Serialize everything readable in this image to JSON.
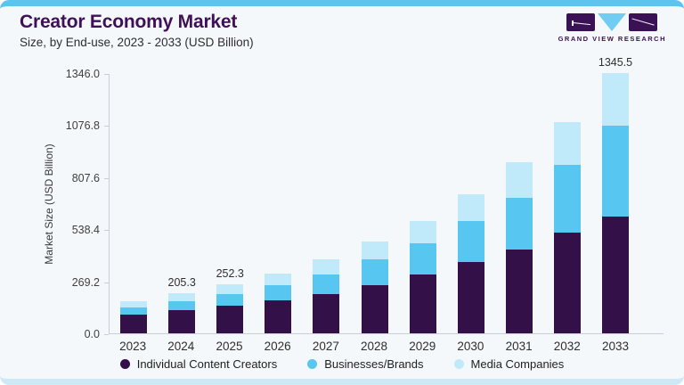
{
  "header": {
    "title": "Creator Economy Market",
    "subtitle": "Size, by End-use, 2023 - 2033 (USD Billion)"
  },
  "logo": {
    "text": "GRAND VIEW RESEARCH",
    "mark_colors": {
      "rect": "#3b1156",
      "triangle": "#70ccf2"
    }
  },
  "colors": {
    "card_background": "#f5f8fb",
    "top_strip": "#5ac6f0",
    "bottom_strip": "#cde9f6",
    "title_text": "#3e1057",
    "axis_line": "#c9cfd7"
  },
  "chart_data": {
    "type": "bar",
    "stacked": true,
    "title": "Creator Economy Market",
    "subtitle": "Size, by End-use, 2023 - 2033 (USD Billion)",
    "xlabel": "",
    "ylabel": "Market Size (USD Billion)",
    "ylim": [
      0,
      1346
    ],
    "yticks": [
      "0.0",
      "269.2",
      "538.4",
      "807.6",
      "1076.8",
      "1346.0"
    ],
    "grid": false,
    "legend_position": "bottom",
    "categories": [
      "2023",
      "2024",
      "2025",
      "2026",
      "2027",
      "2028",
      "2029",
      "2030",
      "2031",
      "2032",
      "2033"
    ],
    "series": [
      {
        "name": "Individual Content Creators",
        "color": "#341049",
        "values": [
          98.2,
          118.1,
          141.3,
          171.1,
          203.3,
          250.7,
          303.3,
          366.7,
          434.4,
          519.3,
          605.5
        ]
      },
      {
        "name": "Businesses/Brands",
        "color": "#57c7f1",
        "values": [
          35.0,
          46.2,
          60.5,
          77.8,
          99.7,
          130.1,
          163.3,
          215.7,
          266.0,
          349.8,
          470.9
        ]
      },
      {
        "name": "Media Companies",
        "color": "#c0e9f9",
        "values": [
          33.3,
          41.0,
          50.5,
          62.2,
          80.6,
          92.2,
          116.6,
          136.7,
          186.2,
          224.1,
          269.1
        ]
      }
    ],
    "totals": [
      166.5,
      205.3,
      252.3,
      311.1,
      383.6,
      473.0,
      583.2,
      719.1,
      886.6,
      1093.2,
      1345.5
    ],
    "data_labels": {
      "2024": "205.3",
      "2025": "252.3",
      "2033": "1345.5"
    }
  }
}
